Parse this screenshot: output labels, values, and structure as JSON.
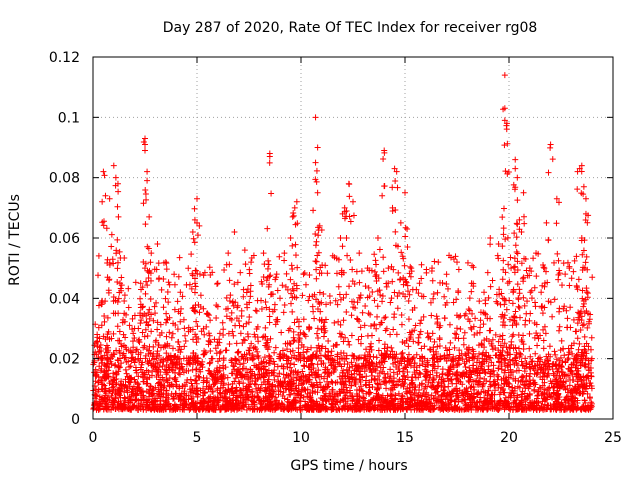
{
  "chart_data": {
    "type": "scatter",
    "title": "Day 287 of 2020, Rate Of TEC Index for receiver rg08",
    "xlabel": "GPS time / hours",
    "ylabel": "ROTI / TECUs",
    "xlim": [
      0,
      25
    ],
    "ylim": [
      0,
      0.12
    ],
    "x_ticks": [
      0,
      5,
      10,
      15,
      20,
      25
    ],
    "x_tick_labels": [
      "0",
      "5",
      "10",
      "15",
      "20",
      "25"
    ],
    "y_ticks": [
      0,
      0.02,
      0.04,
      0.06,
      0.08,
      0.1,
      0.12
    ],
    "y_tick_labels": [
      "0",
      "0.02",
      "0.04",
      "0.06",
      "0.08",
      "0.1",
      "0.12"
    ],
    "grid": true,
    "marker": "+",
    "color": "#ff0000",
    "series": [
      {
        "x_range": [
          0,
          24
        ],
        "baseline_range": [
          0.003,
          0.02
        ],
        "points": [
          [
            0.2,
            0.028
          ],
          [
            0.4,
            0.038
          ],
          [
            0.5,
            0.082
          ],
          [
            0.6,
            0.074
          ],
          [
            0.7,
            0.047
          ],
          [
            0.8,
            0.073
          ],
          [
            1.0,
            0.084
          ],
          [
            1.1,
            0.08
          ],
          [
            1.2,
            0.078
          ],
          [
            1.3,
            0.045
          ],
          [
            1.5,
            0.035
          ],
          [
            2.0,
            0.03
          ],
          [
            2.3,
            0.038
          ],
          [
            2.5,
            0.093
          ],
          [
            2.5,
            0.091
          ],
          [
            2.5,
            0.089
          ],
          [
            2.6,
            0.082
          ],
          [
            2.6,
            0.079
          ],
          [
            2.7,
            0.067
          ],
          [
            2.8,
            0.055
          ],
          [
            3.1,
            0.058
          ],
          [
            3.5,
            0.052
          ],
          [
            3.9,
            0.048
          ],
          [
            4.2,
            0.042
          ],
          [
            4.8,
            0.062
          ],
          [
            4.9,
            0.066
          ],
          [
            5.0,
            0.073
          ],
          [
            5.0,
            0.065
          ],
          [
            5.5,
            0.035
          ],
          [
            6.0,
            0.045
          ],
          [
            6.5,
            0.055
          ],
          [
            6.8,
            0.062
          ],
          [
            7.3,
            0.056
          ],
          [
            7.6,
            0.052
          ],
          [
            8.2,
            0.055
          ],
          [
            8.5,
            0.088
          ],
          [
            8.5,
            0.087
          ],
          [
            8.8,
            0.047
          ],
          [
            9.2,
            0.055
          ],
          [
            9.5,
            0.06
          ],
          [
            9.6,
            0.067
          ],
          [
            9.7,
            0.07
          ],
          [
            9.8,
            0.072
          ],
          [
            10.4,
            0.02
          ],
          [
            10.7,
            0.1
          ],
          [
            10.7,
            0.085
          ],
          [
            10.8,
            0.09
          ],
          [
            10.8,
            0.075
          ],
          [
            10.9,
            0.064
          ],
          [
            11.2,
            0.033
          ],
          [
            11.9,
            0.06
          ],
          [
            12.0,
            0.068
          ],
          [
            12.1,
            0.07
          ],
          [
            12.3,
            0.078
          ],
          [
            12.5,
            0.072
          ],
          [
            12.8,
            0.055
          ],
          [
            13.2,
            0.05
          ],
          [
            13.7,
            0.06
          ],
          [
            13.9,
            0.074
          ],
          [
            14.0,
            0.089
          ],
          [
            14.2,
            0.05
          ],
          [
            14.4,
            0.07
          ],
          [
            14.5,
            0.083
          ],
          [
            14.6,
            0.082
          ],
          [
            14.8,
            0.065
          ],
          [
            15.0,
            0.075
          ],
          [
            15.1,
            0.063
          ],
          [
            15.3,
            0.05
          ],
          [
            15.7,
            0.045
          ],
          [
            16.3,
            0.05
          ],
          [
            16.6,
            0.052
          ],
          [
            17.0,
            0.048
          ],
          [
            17.5,
            0.052
          ],
          [
            18.2,
            0.045
          ],
          [
            18.8,
            0.042
          ],
          [
            19.1,
            0.06
          ],
          [
            19.5,
            0.058
          ],
          [
            19.7,
            0.04
          ],
          [
            19.8,
            0.114
          ],
          [
            19.8,
            0.103
          ],
          [
            19.8,
            0.099
          ],
          [
            19.9,
            0.098
          ],
          [
            20.1,
            0.05
          ],
          [
            20.2,
            0.042
          ],
          [
            20.3,
            0.086
          ],
          [
            20.3,
            0.083
          ],
          [
            20.4,
            0.08
          ],
          [
            20.5,
            0.066
          ],
          [
            20.6,
            0.062
          ],
          [
            20.7,
            0.075
          ],
          [
            21.0,
            0.05
          ],
          [
            21.3,
            0.055
          ],
          [
            21.7,
            0.05
          ],
          [
            21.8,
            0.065
          ],
          [
            22.0,
            0.091
          ],
          [
            22.3,
            0.073
          ],
          [
            22.9,
            0.05
          ],
          [
            23.3,
            0.043
          ],
          [
            23.4,
            0.083
          ],
          [
            23.5,
            0.084
          ],
          [
            23.6,
            0.077
          ],
          [
            23.7,
            0.073
          ],
          [
            23.7,
            0.068
          ],
          [
            23.5,
            0.06
          ],
          [
            23.8,
            0.035
          ]
        ]
      }
    ]
  }
}
